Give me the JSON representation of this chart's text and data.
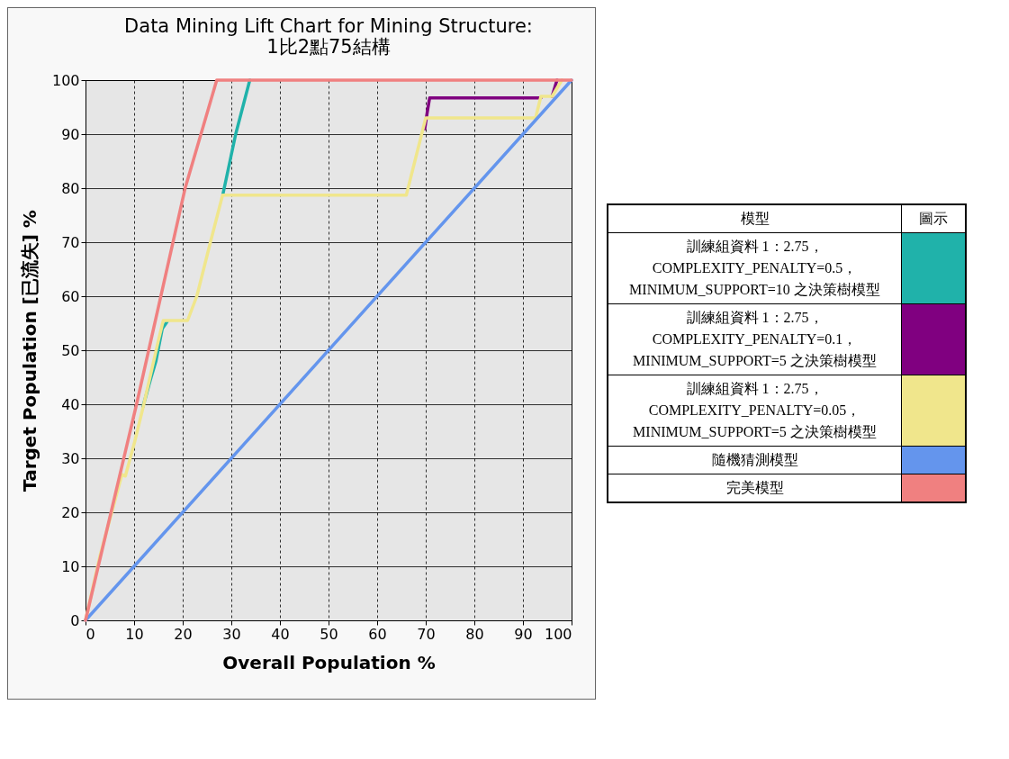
{
  "chart_data": {
    "type": "line",
    "title": "Data Mining Lift Chart for Mining Structure:\n1比2點75結構",
    "xlabel": "Overall Population %",
    "ylabel": "Target Population [已流失] %",
    "legend_title": "模型",
    "annotations": [
      "圖示"
    ],
    "xlim": [
      0,
      100
    ],
    "xticks": [
      0,
      10,
      20,
      30,
      40,
      50,
      60,
      70,
      80,
      90,
      100
    ],
    "ylim": [
      0,
      100
    ],
    "yticks": [
      0,
      10,
      20,
      30,
      40,
      50,
      60,
      70,
      80,
      90,
      100
    ],
    "grid": true,
    "legend": "right",
    "marker": "none",
    "line_style": "solid",
    "series": [
      {
        "name": "訓練組資料 1：2.75，COMPLEXITY_PENALTY=0.5，MINIMUM_SUPPORT=10 之決策樹模型",
        "color": "#20b2aa",
        "x": [
          11.8,
          13.5,
          14.5,
          15.8,
          16.8,
          22,
          28.3,
          30.9,
          33.8
        ],
        "values": [
          39.5,
          45,
          48,
          54,
          55.3,
          null,
          79,
          90,
          100
        ]
      },
      {
        "name": "訓練組資料 1：2.75，COMPLEXITY_PENALTY=0.1，MINIMUM_SUPPORT=5 之決策樹模型",
        "color": "#800080",
        "x": [
          69.8,
          70.3,
          70.8,
          93.7,
          95,
          96,
          97
        ],
        "values": [
          91,
          94,
          96.7,
          96.7,
          null,
          97,
          100
        ]
      },
      {
        "name": "訓練組資料 1：2.75，COMPLEXITY_PENALTY=0.05，MINIMUM_SUPPORT=5 之決策樹模型",
        "color": "#f0e68c",
        "x": [
          0,
          3,
          7.5,
          8.2,
          10.1,
          12,
          15,
          16,
          21,
          22.9,
          25.7,
          28.2,
          66,
          70,
          92.6,
          93.7,
          96,
          98
        ],
        "values": [
          0,
          12,
          27,
          26.7,
          33,
          40,
          51.8,
          55.5,
          55.5,
          60,
          70,
          78.7,
          78.7,
          93,
          93,
          97,
          97,
          100
        ]
      },
      {
        "name": "隨機猜測模型",
        "color": "#6495ed",
        "x": [
          0,
          100
        ],
        "values": [
          0,
          100
        ]
      },
      {
        "name": "完美模型",
        "color": "#f08080",
        "x": [
          0,
          10.5,
          20.5,
          27,
          100
        ],
        "values": [
          0,
          40,
          80,
          100,
          100
        ]
      }
    ]
  }
}
